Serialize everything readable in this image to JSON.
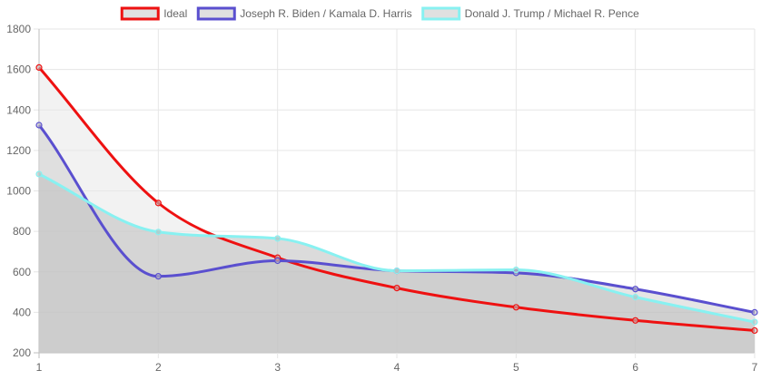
{
  "chart_data": {
    "type": "line",
    "x": [
      1,
      2,
      3,
      4,
      5,
      6,
      7
    ],
    "xlim": [
      1,
      7
    ],
    "ylim": [
      200,
      1800
    ],
    "y_ticks": [
      200,
      400,
      600,
      800,
      1000,
      1200,
      1400,
      1600,
      1800
    ],
    "grid": true,
    "legend_position": "top",
    "series": [
      {
        "name": "Ideal",
        "color": "#ee1111",
        "fill": "#e8e8e8",
        "values": [
          1610,
          940,
          670,
          520,
          425,
          360,
          310
        ]
      },
      {
        "name": "Joseph R. Biden / Kamala D. Harris",
        "color": "#5a4fcf",
        "fill": "#cfcfcf",
        "values": [
          1325,
          578,
          655,
          605,
          595,
          515,
          400
        ]
      },
      {
        "name": "Donald J. Trump / Michael R. Pence",
        "color": "#88f1f1",
        "fill": "#bdbdbd",
        "values": [
          1083,
          797,
          765,
          605,
          610,
          475,
          352
        ]
      }
    ]
  }
}
